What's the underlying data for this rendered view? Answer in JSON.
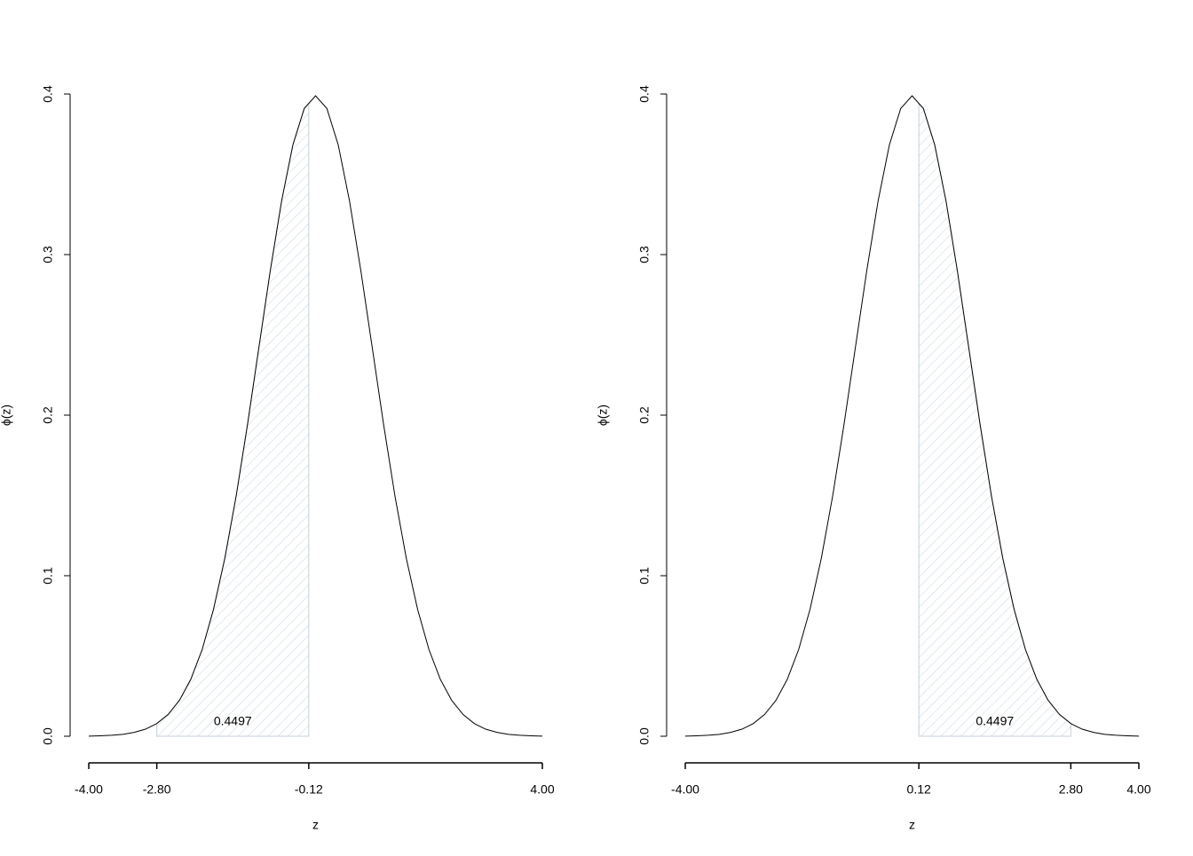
{
  "chart_data": [
    {
      "type": "density",
      "x": [
        -4,
        -3.8,
        -3.6,
        -3.4,
        -3.2,
        -3,
        -2.8,
        -2.6,
        -2.4,
        -2.2,
        -2,
        -1.8,
        -1.6,
        -1.4,
        -1.2,
        -1,
        -0.8,
        -0.6,
        -0.4,
        -0.2,
        0,
        0.2,
        0.4,
        0.6,
        0.8,
        1,
        1.2,
        1.4,
        1.6,
        1.8,
        2,
        2.2,
        2.4,
        2.6,
        2.8,
        3,
        3.2,
        3.4,
        3.6,
        3.8,
        4
      ],
      "values": [
        0.0001,
        0.0003,
        0.0006,
        0.0012,
        0.0024,
        0.0044,
        0.0079,
        0.0136,
        0.0224,
        0.0355,
        0.054,
        0.079,
        0.1109,
        0.1497,
        0.1942,
        0.242,
        0.2897,
        0.3332,
        0.3683,
        0.391,
        0.3989,
        0.391,
        0.3683,
        0.3332,
        0.2897,
        0.242,
        0.1942,
        0.1497,
        0.1109,
        0.079,
        0.054,
        0.0355,
        0.0224,
        0.0136,
        0.0079,
        0.0044,
        0.0024,
        0.0012,
        0.0006,
        0.0003,
        0.0001
      ],
      "color": "#000000",
      "shade": {
        "from": -2.8,
        "to": -0.12,
        "value": 0.4497,
        "color": "#c9d6df"
      },
      "xlabel": "z",
      "ylabel": "ϕ(z)",
      "xlim": [
        -4,
        4
      ],
      "ylim": [
        0,
        0.4
      ],
      "xticks": [
        {
          "value": -4,
          "label": "-4.00"
        },
        {
          "value": -2.8,
          "label": "-2.80"
        },
        {
          "value": -0.12,
          "label": "-0.12"
        },
        {
          "value": 4,
          "label": "4.00"
        }
      ],
      "yticks": [
        {
          "value": 0,
          "label": "0.0"
        },
        0.1,
        0.2,
        0.3,
        0.4
      ]
    },
    {
      "type": "density",
      "x": [
        -4,
        -3.8,
        -3.6,
        -3.4,
        -3.2,
        -3,
        -2.8,
        -2.6,
        -2.4,
        -2.2,
        -2,
        -1.8,
        -1.6,
        -1.4,
        -1.2,
        -1,
        -0.8,
        -0.6,
        -0.4,
        -0.2,
        0,
        0.2,
        0.4,
        0.6,
        0.8,
        1,
        1.2,
        1.4,
        1.6,
        1.8,
        2,
        2.2,
        2.4,
        2.6,
        2.8,
        3,
        3.2,
        3.4,
        3.6,
        3.8,
        4
      ],
      "values": [
        0.0001,
        0.0003,
        0.0006,
        0.0012,
        0.0024,
        0.0044,
        0.0079,
        0.0136,
        0.0224,
        0.0355,
        0.054,
        0.079,
        0.1109,
        0.1497,
        0.1942,
        0.242,
        0.2897,
        0.3332,
        0.3683,
        0.391,
        0.3989,
        0.391,
        0.3683,
        0.3332,
        0.2897,
        0.242,
        0.1942,
        0.1497,
        0.1109,
        0.079,
        0.054,
        0.0355,
        0.0224,
        0.0136,
        0.0079,
        0.0044,
        0.0024,
        0.0012,
        0.0006,
        0.0003,
        0.0001
      ],
      "color": "#000000",
      "shade": {
        "from": 0.12,
        "to": 2.8,
        "value": 0.4497,
        "color": "#c9d6df"
      },
      "xlabel": "z",
      "ylabel": "ϕ(z)",
      "xlim": [
        -4,
        4
      ],
      "ylim": [
        0,
        0.4
      ],
      "xticks": [
        {
          "value": -4,
          "label": "-4.00"
        },
        {
          "value": 0.12,
          "label": "0.12"
        },
        {
          "value": 2.8,
          "label": "2.80"
        },
        {
          "value": 4,
          "label": "4.00"
        }
      ],
      "yticks": [
        {
          "value": 0,
          "label": "0.0"
        },
        0.1,
        0.2,
        0.3,
        0.4
      ]
    }
  ]
}
